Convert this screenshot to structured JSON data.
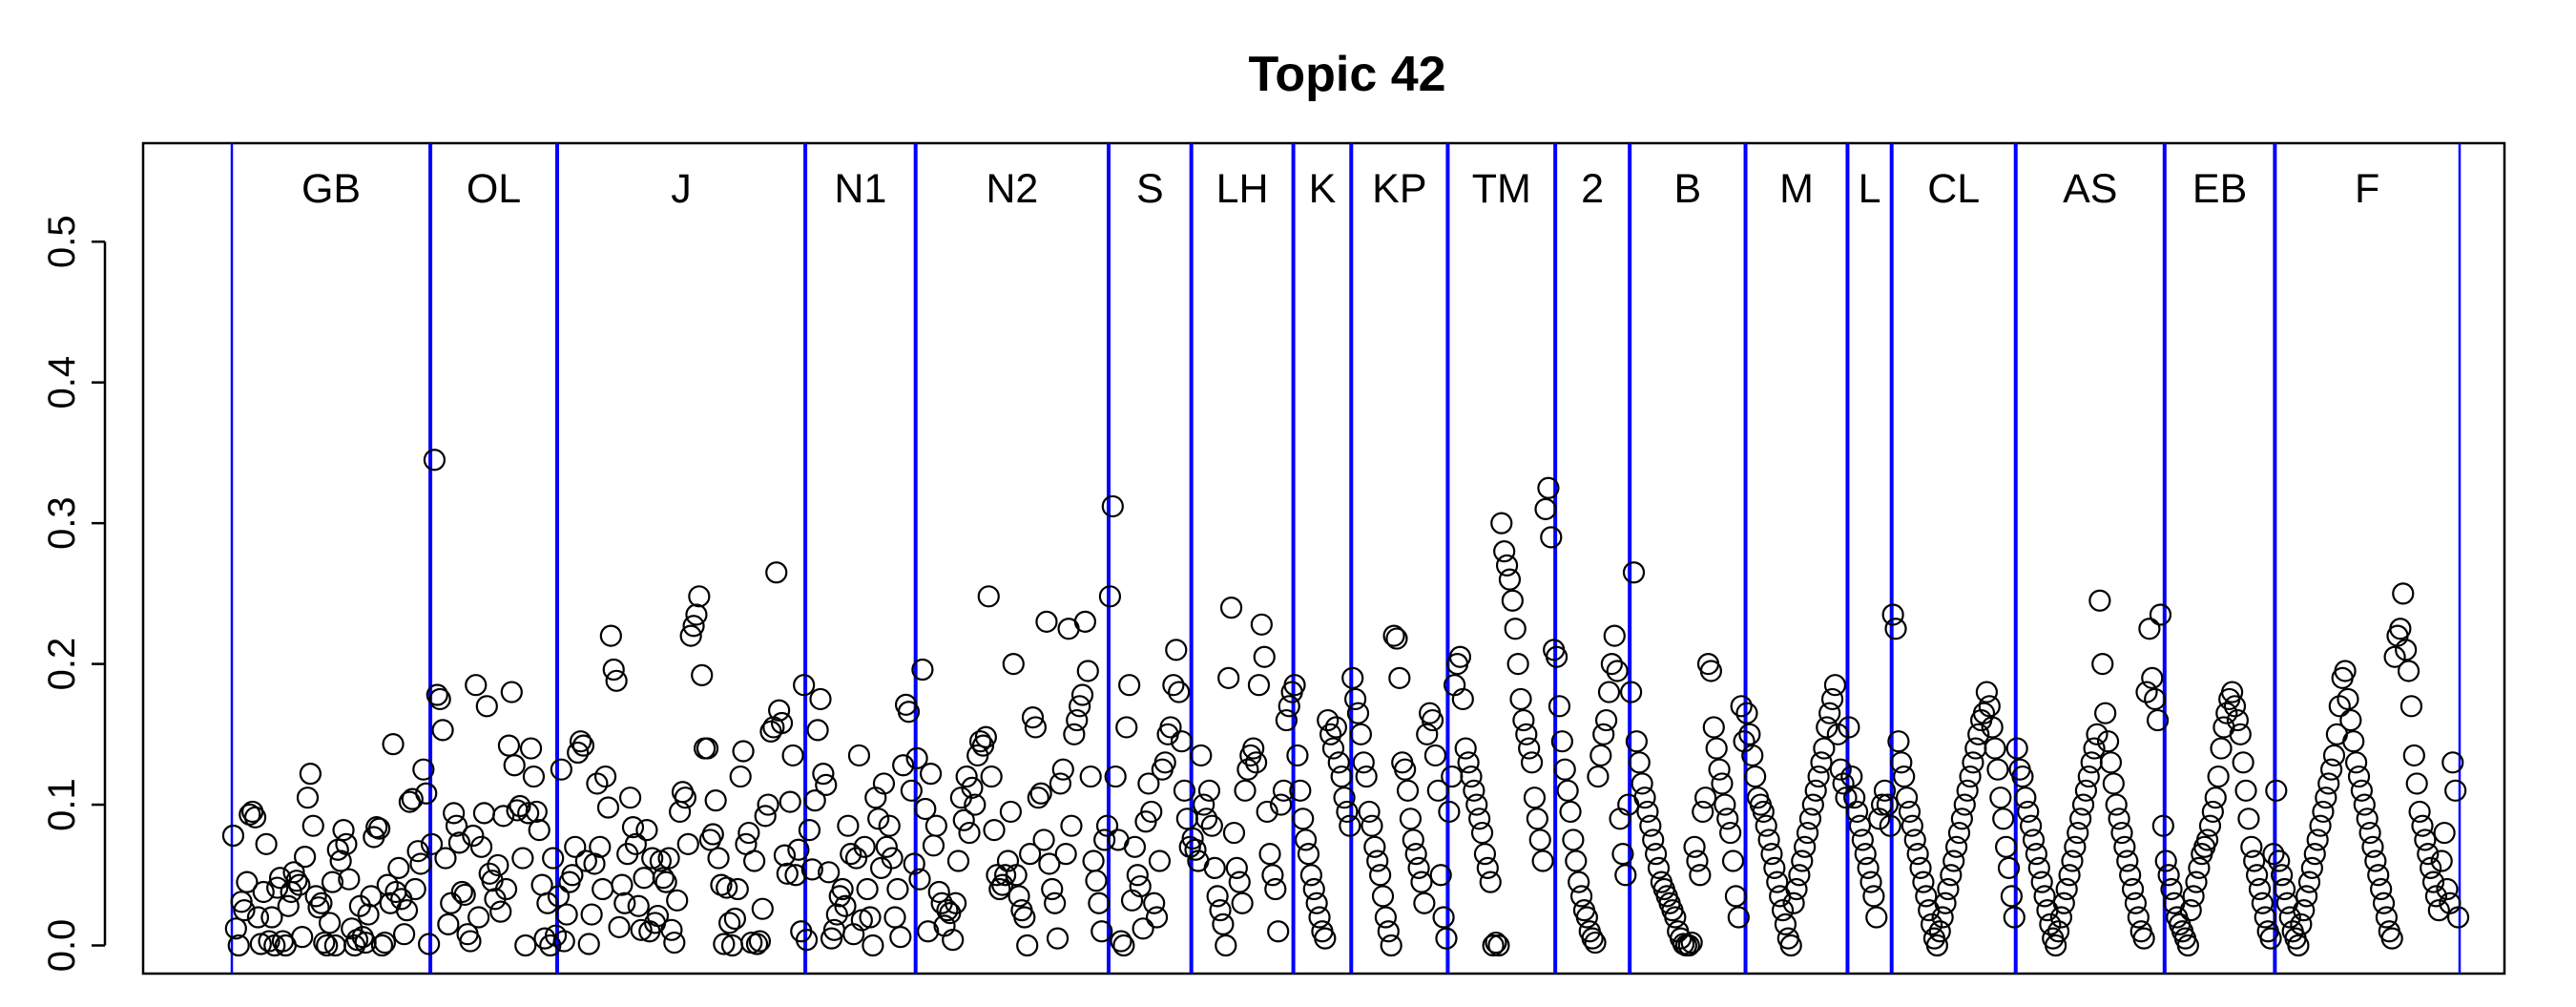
{
  "chart_data": {
    "type": "scatter",
    "title": "Topic 42",
    "xlabel": "",
    "ylabel": "",
    "ylim": [
      -0.02,
      0.57
    ],
    "y_ticks": [
      "0.0",
      "0.1",
      "0.2",
      "0.3",
      "0.4",
      "0.5"
    ],
    "y_tick_values": [
      0.0,
      0.1,
      0.2,
      0.3,
      0.4,
      0.5
    ],
    "grid": false,
    "legend": "none",
    "boundary_color": "#0000ff",
    "marker": "open circle",
    "regions": [
      {
        "label": "GB",
        "count": 72
      },
      {
        "label": "OL",
        "count": 46
      },
      {
        "label": "J",
        "count": 90
      },
      {
        "label": "N1",
        "count": 40
      },
      {
        "label": "N2",
        "count": 70
      },
      {
        "label": "S",
        "count": 30
      },
      {
        "label": "LH",
        "count": 37
      },
      {
        "label": "K",
        "count": 21
      },
      {
        "label": "KP",
        "count": 35
      },
      {
        "label": "TM",
        "count": 39
      },
      {
        "label": "2",
        "count": 27
      },
      {
        "label": "B",
        "count": 42
      },
      {
        "label": "M",
        "count": 37
      },
      {
        "label": "L",
        "count": 16
      },
      {
        "label": "CL",
        "count": 45
      },
      {
        "label": "AS",
        "count": 54
      },
      {
        "label": "EB",
        "count": 40
      },
      {
        "label": "F",
        "count": 67
      }
    ],
    "series": [
      {
        "values": [
          0.078,
          0.012,
          0.0,
          0.031,
          0.025,
          0.045,
          0.093,
          0.095,
          0.091,
          0.02,
          0.001,
          0.038,
          0.072,
          0.003,
          0.02,
          0.0,
          0.041,
          0.048,
          0.003,
          0.0,
          0.028,
          0.038,
          0.052,
          0.046,
          0.043,
          0.006,
          0.063,
          0.105,
          0.122,
          0.085,
          0.035,
          0.027,
          0.03,
          0.002,
          0.0,
          0.016,
          0.045,
          0.0,
          0.068,
          0.06,
          0.082,
          0.072,
          0.047,
          0.012,
          0.0,
          0.004,
          0.028,
          0.006,
          0.002,
          0.022,
          0.035,
          0.077,
          0.084,
          0.083,
          0.0,
          0.002,
          0.043,
          0.03,
          0.143,
          0.038,
          0.055,
          0.033,
          0.008,
          0.025,
          0.102,
          0.104,
          0.04,
          0.067,
          0.058,
          0.125,
          0.108,
          0.001,
          0.072,
          0.345,
          0.178,
          0.175,
          0.153,
          0.062,
          0.015,
          0.03,
          0.094,
          0.085,
          0.073,
          0.038,
          0.036,
          0.008,
          0.003,
          0.078,
          0.185,
          0.02,
          0.07,
          0.094,
          0.17,
          0.051,
          0.046,
          0.033,
          0.057,
          0.024,
          0.092,
          0.04,
          0.142,
          0.18,
          0.128,
          0.096,
          0.099,
          0.062,
          0.0,
          0.094,
          0.14,
          0.12,
          0.095,
          0.082,
          0.043,
          0.005,
          0.03,
          0.0,
          0.062,
          0.007,
          0.035,
          0.125,
          0.003,
          0.022,
          0.045,
          0.05,
          0.07,
          0.137,
          0.145,
          0.142,
          0.06,
          0.001,
          0.022,
          0.058,
          0.115,
          0.07,
          0.04,
          0.12,
          0.098,
          0.22,
          0.196,
          0.188,
          0.013,
          0.043,
          0.03,
          0.065,
          0.105,
          0.084,
          0.072,
          0.028,
          0.011,
          0.048,
          0.082,
          0.01,
          0.062,
          0.016,
          0.021,
          0.06,
          0.048,
          0.045,
          0.062,
          0.011,
          0.002,
          0.032,
          0.095,
          0.109,
          0.105,
          0.072,
          0.22,
          0.227,
          0.235,
          0.248,
          0.192,
          0.14,
          0.14,
          0.075,
          0.079,
          0.103,
          0.062,
          0.043,
          0.001,
          0.041,
          0.016,
          0.0,
          0.019,
          0.04,
          0.12,
          0.138,
          0.072,
          0.08,
          0.002,
          0.06,
          0.001,
          0.003,
          0.026,
          0.092,
          0.1,
          0.152,
          0.155,
          0.265,
          0.167,
          0.158,
          0.064,
          0.051,
          0.102,
          0.135,
          0.05,
          0.068,
          0.01,
          0.185,
          0.004,
          0.082,
          0.054,
          0.103,
          0.153,
          0.175,
          0.122,
          0.114,
          0.052,
          0.005,
          0.011,
          0.022,
          0.035,
          0.04,
          0.028,
          0.085,
          0.065,
          0.008,
          0.062,
          0.135,
          0.018,
          0.07,
          0.04,
          0.02,
          0.0,
          0.105,
          0.09,
          0.055,
          0.115,
          0.07,
          0.085,
          0.062,
          0.02,
          0.04,
          0.006,
          0.128,
          0.171,
          0.166,
          0.11,
          0.058,
          0.133,
          0.047,
          0.196,
          0.097,
          0.01,
          0.122,
          0.071,
          0.085,
          0.038,
          0.03,
          0.014,
          0.025,
          0.023,
          0.004,
          0.03,
          0.06,
          0.105,
          0.089,
          0.12,
          0.08,
          0.112,
          0.1,
          0.135,
          0.145,
          0.142,
          0.148,
          0.248,
          0.12,
          0.082,
          0.05,
          0.04,
          0.043,
          0.05,
          0.06,
          0.095,
          0.2,
          0.05,
          0.035,
          0.025,
          0.02,
          0.0,
          0.065,
          0.162,
          0.155,
          0.105,
          0.108,
          0.075,
          0.23,
          0.058,
          0.04,
          0.03,
          0.005,
          0.115,
          0.125,
          0.065,
          0.225,
          0.085,
          0.15,
          0.16,
          0.17,
          0.178,
          0.23,
          0.195,
          0.12,
          0.06,
          0.046,
          0.03,
          0.01,
          0.075,
          0.085,
          0.248,
          0.312,
          0.12,
          0.075,
          0.003,
          0.0,
          0.155,
          0.185,
          0.032,
          0.07,
          0.05,
          0.042,
          0.012,
          0.088,
          0.115,
          0.095,
          0.03,
          0.02,
          0.06,
          0.125,
          0.13,
          0.15,
          0.155,
          0.185,
          0.21,
          0.18,
          0.145,
          0.11,
          0.09,
          0.07,
          0.076,
          0.068,
          0.06,
          0.135,
          0.1,
          0.09,
          0.11,
          0.085,
          0.055,
          0.035,
          0.025,
          0.015,
          0.0,
          0.19,
          0.24,
          0.08,
          0.055,
          0.045,
          0.03,
          0.11,
          0.125,
          0.135,
          0.14,
          0.13,
          0.185,
          0.228,
          0.205,
          0.095,
          0.065,
          0.05,
          0.04,
          0.01,
          0.1,
          0.11,
          0.16,
          0.17,
          0.18,
          0.185,
          0.135,
          0.11,
          0.09,
          0.075,
          0.065,
          0.05,
          0.04,
          0.03,
          0.02,
          0.01,
          0.005,
          0.16,
          0.15,
          0.14,
          0.155,
          0.13,
          0.12,
          0.105,
          0.095,
          0.085,
          0.19,
          0.175,
          0.165,
          0.15,
          0.13,
          0.12,
          0.095,
          0.085,
          0.07,
          0.06,
          0.05,
          0.035,
          0.02,
          0.01,
          0.0,
          0.22,
          0.218,
          0.19,
          0.13,
          0.125,
          0.11,
          0.09,
          0.075,
          0.065,
          0.055,
          0.045,
          0.03,
          0.15,
          0.165,
          0.16,
          0.135,
          0.11,
          0.05,
          0.02,
          0.005,
          0.095,
          0.12,
          0.185,
          0.2,
          0.205,
          0.175,
          0.14,
          0.13,
          0.12,
          0.11,
          0.1,
          0.09,
          0.08,
          0.065,
          0.055,
          0.045,
          0.0,
          0.002,
          0.0,
          0.3,
          0.28,
          0.27,
          0.26,
          0.245,
          0.225,
          0.2,
          0.175,
          0.16,
          0.15,
          0.14,
          0.13,
          0.105,
          0.09,
          0.075,
          0.06,
          0.31,
          0.325,
          0.29,
          0.21,
          0.205,
          0.17,
          0.145,
          0.125,
          0.11,
          0.095,
          0.075,
          0.06,
          0.045,
          0.035,
          0.025,
          0.02,
          0.01,
          0.005,
          0.002,
          0.12,
          0.135,
          0.15,
          0.16,
          0.18,
          0.2,
          0.22,
          0.195,
          0.09,
          0.065,
          0.05,
          0.1,
          0.18,
          0.265,
          0.145,
          0.13,
          0.115,
          0.105,
          0.095,
          0.085,
          0.075,
          0.065,
          0.055,
          0.045,
          0.04,
          0.035,
          0.03,
          0.025,
          0.02,
          0.01,
          0.005,
          0.001,
          0.0,
          0.0,
          0.002,
          0.07,
          0.06,
          0.05,
          0.095,
          0.105,
          0.2,
          0.195,
          0.155,
          0.14,
          0.125,
          0.115,
          0.1,
          0.09,
          0.08,
          0.06,
          0.035,
          0.02,
          0.17,
          0.145,
          0.165,
          0.15,
          0.135,
          0.12,
          0.105,
          0.1,
          0.095,
          0.085,
          0.075,
          0.065,
          0.055,
          0.045,
          0.035,
          0.025,
          0.015,
          0.005,
          0.0,
          0.03,
          0.04,
          0.05,
          0.06,
          0.07,
          0.08,
          0.09,
          0.1,
          0.11,
          0.12,
          0.13,
          0.14,
          0.155,
          0.165,
          0.175,
          0.185,
          0.15,
          0.125,
          0.115,
          0.105,
          0.155,
          0.12,
          0.105,
          0.095,
          0.085,
          0.075,
          0.065,
          0.055,
          0.045,
          0.035,
          0.02,
          0.09,
          0.1,
          0.11,
          0.1,
          0.085,
          0.235,
          0.225,
          0.145,
          0.13,
          0.12,
          0.105,
          0.095,
          0.085,
          0.075,
          0.065,
          0.055,
          0.045,
          0.035,
          0.025,
          0.015,
          0.005,
          0.0,
          0.01,
          0.02,
          0.03,
          0.04,
          0.05,
          0.06,
          0.07,
          0.08,
          0.09,
          0.1,
          0.11,
          0.12,
          0.13,
          0.14,
          0.15,
          0.16,
          0.165,
          0.18,
          0.17,
          0.155,
          0.14,
          0.125,
          0.105,
          0.09,
          0.07,
          0.055,
          0.035,
          0.02,
          0.14,
          0.125,
          0.12,
          0.105,
          0.095,
          0.085,
          0.075,
          0.065,
          0.055,
          0.045,
          0.035,
          0.025,
          0.015,
          0.005,
          0.0,
          0.01,
          0.02,
          0.03,
          0.04,
          0.05,
          0.06,
          0.07,
          0.08,
          0.09,
          0.1,
          0.11,
          0.12,
          0.13,
          0.14,
          0.15,
          0.245,
          0.2,
          0.165,
          0.145,
          0.13,
          0.115,
          0.1,
          0.09,
          0.08,
          0.07,
          0.06,
          0.05,
          0.04,
          0.03,
          0.02,
          0.01,
          0.005,
          0.18,
          0.225,
          0.19,
          0.175,
          0.16,
          0.235,
          0.085,
          0.06,
          0.05,
          0.04,
          0.03,
          0.02,
          0.015,
          0.01,
          0.005,
          0.0,
          0.025,
          0.035,
          0.045,
          0.055,
          0.065,
          0.07,
          0.075,
          0.085,
          0.095,
          0.105,
          0.12,
          0.14,
          0.155,
          0.165,
          0.175,
          0.18,
          0.17,
          0.16,
          0.15,
          0.13,
          0.11,
          0.09,
          0.07,
          0.06,
          0.05,
          0.04,
          0.03,
          0.02,
          0.01,
          0.005,
          0.065,
          0.11,
          0.06,
          0.05,
          0.04,
          0.03,
          0.02,
          0.01,
          0.005,
          0.0,
          0.015,
          0.025,
          0.035,
          0.045,
          0.055,
          0.065,
          0.075,
          0.085,
          0.095,
          0.105,
          0.115,
          0.125,
          0.135,
          0.15,
          0.17,
          0.19,
          0.195,
          0.175,
          0.16,
          0.145,
          0.13,
          0.12,
          0.11,
          0.1,
          0.09,
          0.08,
          0.07,
          0.06,
          0.05,
          0.04,
          0.03,
          0.02,
          0.01,
          0.005,
          0.205,
          0.22,
          0.225,
          0.25,
          0.21,
          0.195,
          0.17,
          0.135,
          0.115,
          0.095,
          0.085,
          0.075,
          0.065,
          0.055,
          0.045,
          0.035,
          0.025,
          0.06,
          0.08,
          0.04,
          0.03,
          0.13,
          0.11,
          0.02
        ]
      }
    ]
  }
}
